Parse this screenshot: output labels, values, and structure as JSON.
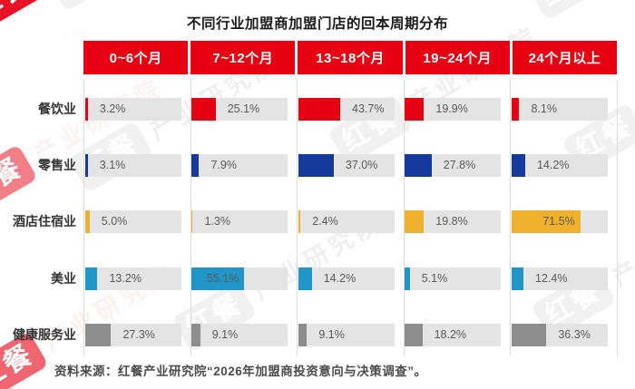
{
  "page": {
    "title": "不同行业加盟商加盟门店的回本周期分布",
    "source_note": "资料来源：红餐产业研究院“2026年加盟商投资意向与决策调查”。"
  },
  "watermark": {
    "brand_box_text": "红餐",
    "brand_suffix_text": "产业研究院"
  },
  "colors": {
    "header_bg": "#e60012",
    "bar_track": "#e4e4e4",
    "value_text": "#595959",
    "row_label_text": "#333333",
    "separator_line": "#dcdcdc"
  },
  "chart_data": {
    "type": "bar",
    "variant": "grid-of-horizontal-bars",
    "title": "不同行业加盟商加盟门店的回本周期分布",
    "columns": [
      "0~6个月",
      "7~12个月",
      "13~18个月",
      "19~24个月",
      "24个月以上"
    ],
    "rows": [
      {
        "label": "餐饮业",
        "color": "#e60012",
        "values": [
          3.2,
          25.1,
          43.7,
          19.9,
          8.1
        ]
      },
      {
        "label": "零售业",
        "color": "#16399d",
        "values": [
          3.1,
          7.9,
          37.0,
          27.8,
          14.2
        ]
      },
      {
        "label": "酒店住宿业",
        "color": "#efb02d",
        "values": [
          5.0,
          1.3,
          2.4,
          19.8,
          71.5
        ]
      },
      {
        "label": "美业",
        "color": "#2095c8",
        "values": [
          13.2,
          55.1,
          14.2,
          5.1,
          12.4
        ]
      },
      {
        "label": "健康服务业",
        "color": "#8d8d8d",
        "values": [
          27.3,
          9.1,
          9.1,
          18.2,
          36.3
        ]
      }
    ],
    "unit": "%",
    "xlim": [
      0,
      100
    ],
    "grid": "vertical column separators only",
    "legend": "none",
    "value_labels": "at end of each bar; inside bar when bar is long"
  }
}
